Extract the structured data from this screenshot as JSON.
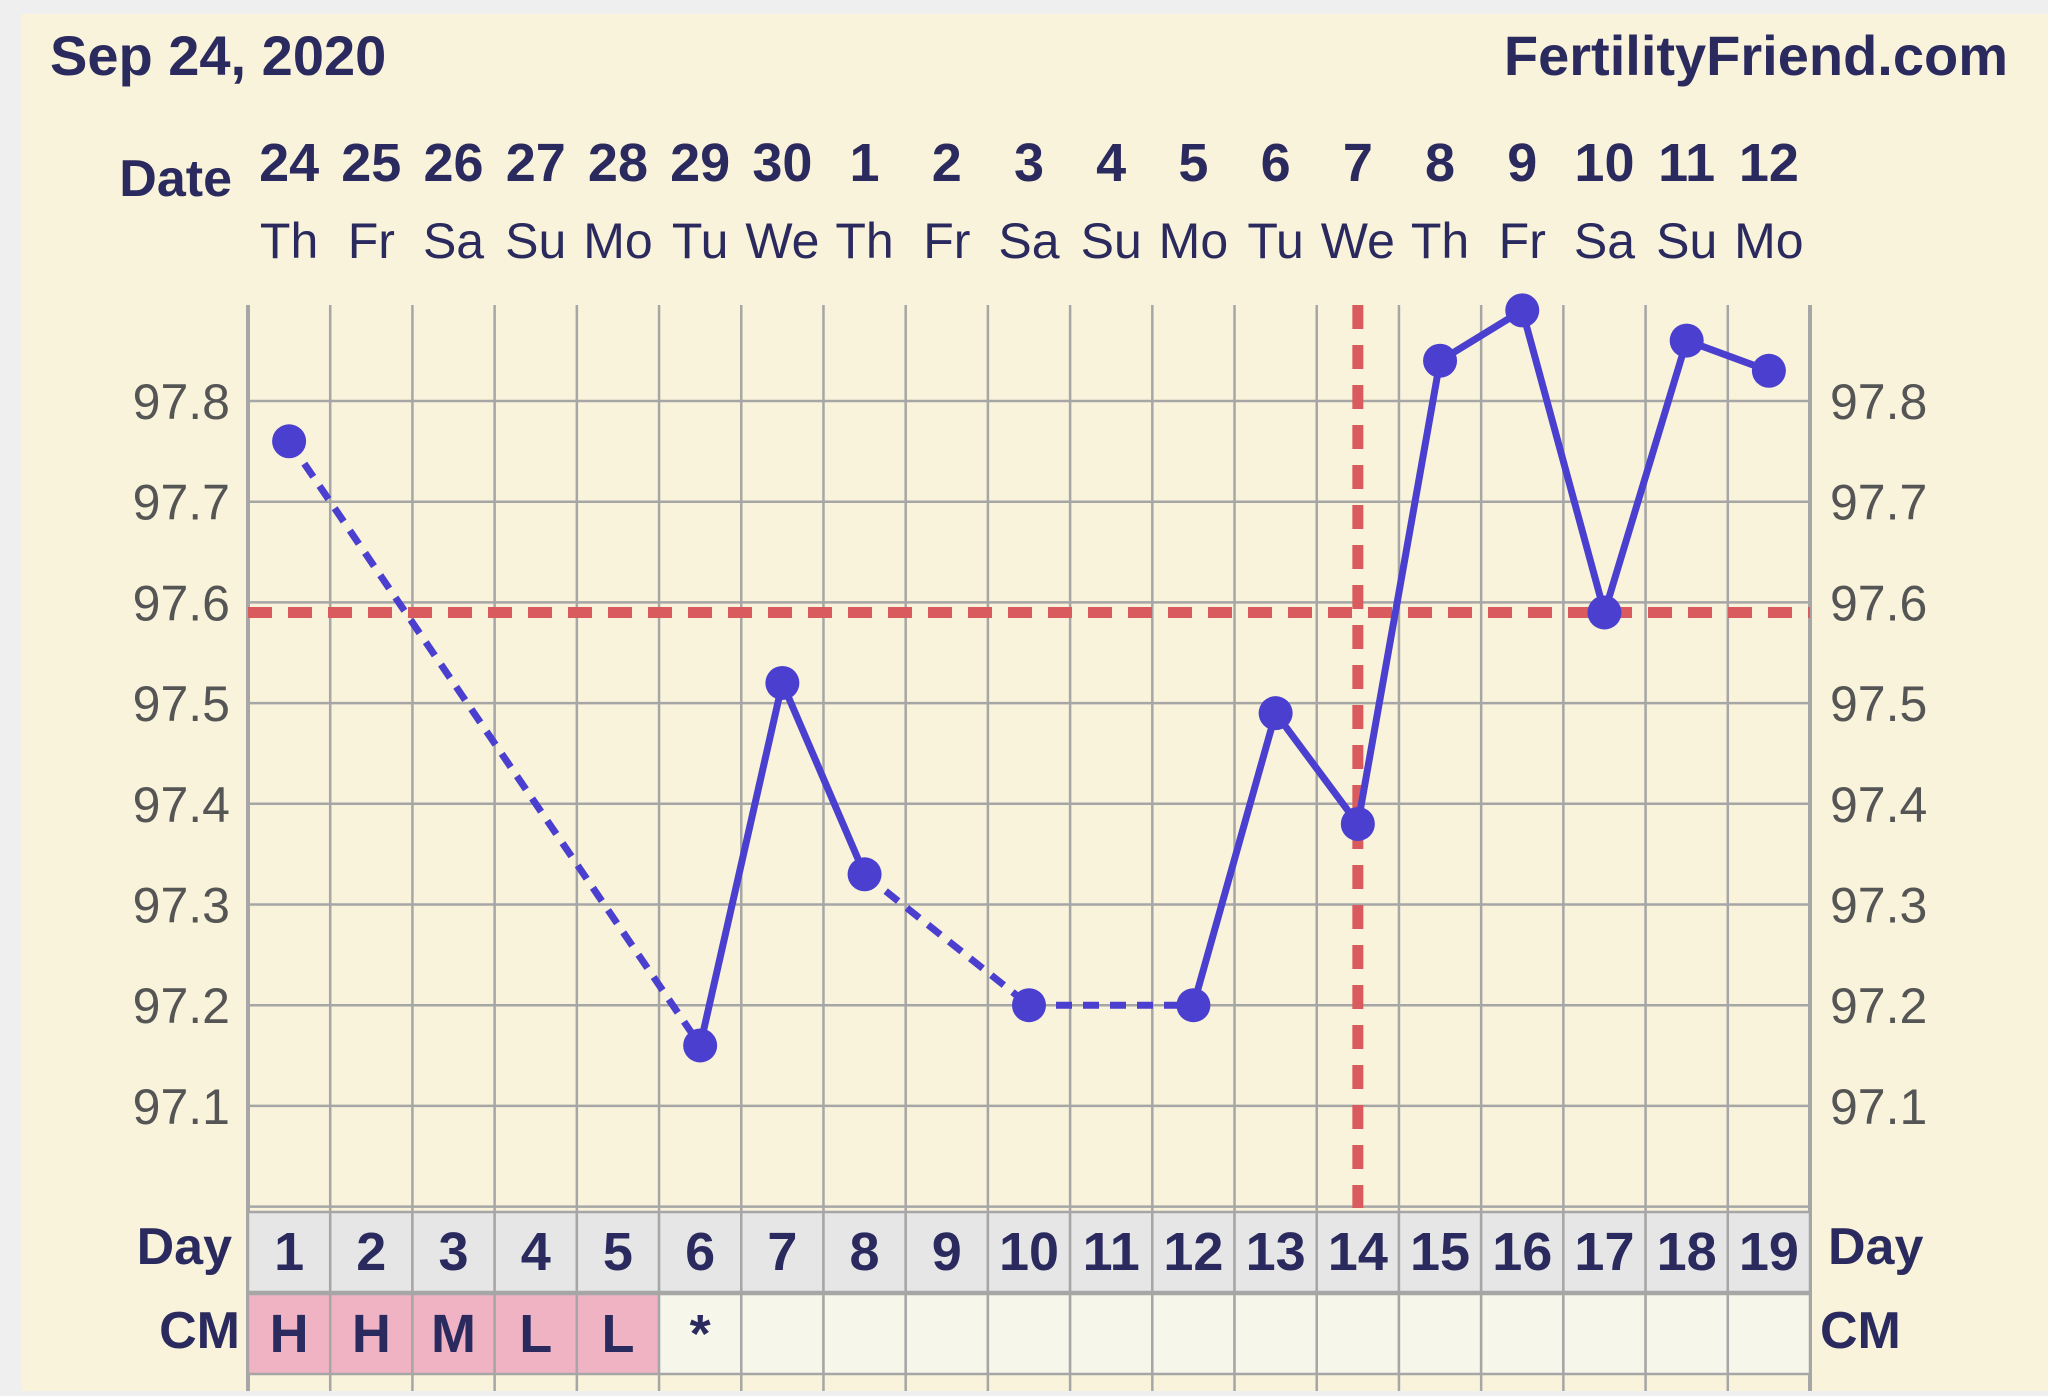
{
  "header": {
    "date": "Sep 24, 2020",
    "site": "FertilityFriend.com"
  },
  "rows": {
    "date_label": "Date",
    "day_label": "Day",
    "cm_label": "CM"
  },
  "chart_data": {
    "type": "line",
    "dates": [
      "24",
      "25",
      "26",
      "27",
      "28",
      "29",
      "30",
      "1",
      "2",
      "3",
      "4",
      "5",
      "6",
      "7",
      "8",
      "9",
      "10",
      "11",
      "12"
    ],
    "weekdays": [
      "Th",
      "Fr",
      "Sa",
      "Su",
      "Mo",
      "Tu",
      "We",
      "Th",
      "Fr",
      "Sa",
      "Su",
      "Mo",
      "Tu",
      "We",
      "Th",
      "Fr",
      "Sa",
      "Su",
      "Mo"
    ],
    "cycle_days": [
      1,
      2,
      3,
      4,
      5,
      6,
      7,
      8,
      9,
      10,
      11,
      12,
      13,
      14,
      15,
      16,
      17,
      18,
      19
    ],
    "temperatures": [
      97.76,
      null,
      null,
      null,
      null,
      97.16,
      97.52,
      97.33,
      null,
      97.2,
      null,
      97.2,
      97.49,
      97.38,
      97.84,
      97.89,
      97.59,
      97.86,
      97.83
    ],
    "yticks": [
      97.1,
      97.2,
      97.3,
      97.4,
      97.5,
      97.6,
      97.7,
      97.8
    ],
    "ylim": [
      97.0,
      97.9
    ],
    "coverline": 97.59,
    "ovulation_day": 14,
    "cm": [
      "H",
      "H",
      "M",
      "L",
      "L",
      "*",
      "",
      "",
      "",
      "",
      "",
      "",
      "",
      "",
      "",
      "",
      "",
      "",
      ""
    ],
    "colors": {
      "page_bg": "#f8f3da",
      "line": "#4b3fcf",
      "reference": "#d95b5e",
      "grid": "#a6a6a6",
      "text": "#2b2a5e",
      "tick": "#555555",
      "day_row_bg": "#e6e6e6",
      "cm_filled_bg": "#f0b3c4",
      "cm_empty_bg": "#f7f6ea"
    },
    "grid": true
  }
}
